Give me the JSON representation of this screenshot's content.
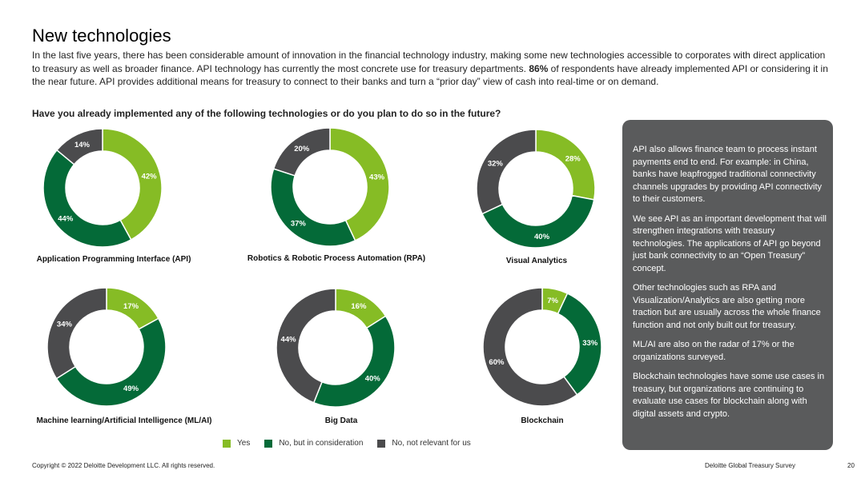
{
  "title": "New technologies",
  "intro": {
    "part1": "In the last five years, there has been considerable amount of innovation in the financial technology industry, making some new technologies accessible to corporates with direct application to treasury as well as broader finance. API technology has currently the most concrete use for treasury departments. ",
    "bold": "86%",
    "part2": " of respondents have already implemented API or considering it in the near future. API provides additional means for treasury to connect to their banks and turn a “prior day” view of cash into real-time or on demand."
  },
  "question": "Have you already implemented any of the following technologies or do you plan to do so in the future?",
  "colors": {
    "yes": "#86bc25",
    "consideration": "#046a38",
    "not_relevant": "#4b4b4d",
    "sidebar_bg": "#5a5b5c"
  },
  "legend": [
    {
      "label": "Yes",
      "color": "#86bc25"
    },
    {
      "label": "No, but in consideration",
      "color": "#046a38"
    },
    {
      "label": "No, not relevant for us",
      "color": "#4b4b4d"
    }
  ],
  "chart_data": [
    {
      "type": "pie",
      "donut": true,
      "title": "Application Programming Interface (API)",
      "categories": [
        "Yes",
        "No, but in consideration",
        "No, not relevant for us"
      ],
      "values": [
        42,
        44,
        14
      ],
      "labels": [
        "42%",
        "44%",
        "14%"
      ]
    },
    {
      "type": "pie",
      "donut": true,
      "title": "Robotics & Robotic Process Automation (RPA)",
      "categories": [
        "Yes",
        "No, but in consideration",
        "No, not relevant for us"
      ],
      "values": [
        43,
        37,
        20
      ],
      "labels": [
        "43%",
        "37%",
        "20%"
      ]
    },
    {
      "type": "pie",
      "donut": true,
      "title": "Visual Analytics",
      "categories": [
        "Yes",
        "No, but in consideration",
        "No, not relevant for us"
      ],
      "values": [
        28,
        40,
        32
      ],
      "labels": [
        "28%",
        "40%",
        "32%"
      ]
    },
    {
      "type": "pie",
      "donut": true,
      "title": "Machine learning/Artificial Intelligence (ML/AI)",
      "categories": [
        "Yes",
        "No, but in consideration",
        "No, not relevant for us"
      ],
      "values": [
        17,
        49,
        34
      ],
      "labels": [
        "17%",
        "49%",
        "34%"
      ]
    },
    {
      "type": "pie",
      "donut": true,
      "title": "Big Data",
      "categories": [
        "Yes",
        "No, but in consideration",
        "No, not relevant for us"
      ],
      "values": [
        16,
        40,
        44
      ],
      "labels": [
        "16%",
        "40%",
        "44%"
      ]
    },
    {
      "type": "pie",
      "donut": true,
      "title": "Blockchain",
      "categories": [
        "Yes",
        "No, but in consideration",
        "No, not relevant for us"
      ],
      "values": [
        7,
        33,
        60
      ],
      "labels": [
        "7%",
        "33%",
        "60%"
      ]
    }
  ],
  "sidebar": {
    "paragraphs": [
      "API also allows finance team to process instant payments end to end. For example: in China, banks have leapfrogged traditional connectivity channels upgrades by providing API connectivity to their customers.",
      "We see API as an important development that will strengthen integrations with treasury technologies. The applications of API go beyond just bank connectivity to an “Open Treasury” concept.",
      "Other technologies such as RPA and Visualization/Analytics are also getting more traction but are usually across the whole finance function and not only built out for treasury.",
      "ML/AI are also on the radar of 17% or the organizations surveyed.",
      "Blockchain technologies have some use cases in treasury, but organizations are continuing to evaluate use cases for blockchain along with digital assets and crypto."
    ]
  },
  "footer": {
    "copyright": "Copyright © 2022 Deloitte Development LLC. All rights reserved.",
    "report": "Deloitte Global Treasury Survey",
    "page": "20"
  }
}
